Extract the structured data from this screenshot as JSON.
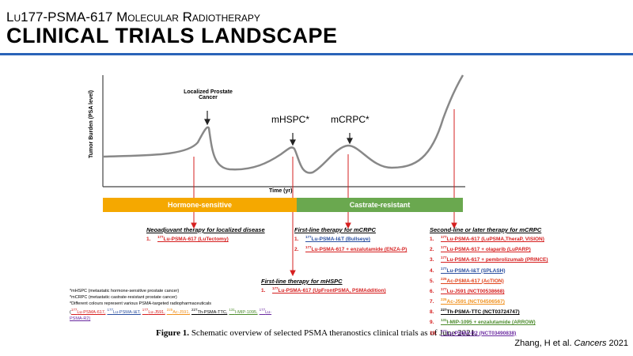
{
  "header": {
    "subtitle": "Lu177-PSMA-617 Molecular Radiotherapy",
    "title": "CLINICAL TRIALS LANDSCAPE"
  },
  "figure": {
    "y_axis_label": "Tumor Burden (PSA level)",
    "x_axis_label": "Time (yr)",
    "stages": [
      "Localized Prostate Cancer",
      "mHSPC*",
      "mCRPC*"
    ],
    "phases": [
      {
        "label": "Hormone-sensitive",
        "color": "#f5a800"
      },
      {
        "label": "Castrate-resistant",
        "color": "#6aa84f"
      }
    ],
    "sections": [
      {
        "heading": "Neoadjuvant therapy for localized disease",
        "items": [
          {
            "number": "1.",
            "sup": "177",
            "text": "Lu-PSMA-617 (LuTectomy)",
            "color": "#d62020"
          }
        ]
      },
      {
        "heading": "First-line therapy for mHSPC",
        "items": [
          {
            "number": "1.",
            "sup": "177",
            "text": "Lu-PSMA-617 (UpFrontPSMA, PSMAddition)",
            "color": "#d62020"
          }
        ]
      },
      {
        "heading": "First-line therapy for mCRPC",
        "items": [
          {
            "number": "1.",
            "sup": "177",
            "text": "Lu-PSMA-I&T (Bullseye)",
            "color": "#2a4fa0"
          },
          {
            "number": "2.",
            "sup": "177",
            "text": "Lu-PSMA-617 + enzalutamide (ENZA-P)",
            "color": "#d62020"
          }
        ]
      },
      {
        "heading": "Second-line or later therapy for mCRPC",
        "items": [
          {
            "number": "1.",
            "sup": "177",
            "text": "Lu-PSMA-617 (LuPSMA,TheraP, VISION)",
            "color": "#d62020"
          },
          {
            "number": "2.",
            "sup": "177",
            "text": "Lu-PSMA-617 + olaparib (LuPARP)",
            "color": "#d62020"
          },
          {
            "number": "3.",
            "sup": "177",
            "text": "Lu-PSMA-617 + pembrolizumab (PRINCE)",
            "color": "#d62020"
          },
          {
            "number": "4.",
            "sup": "177",
            "text": "Lu-PSMA-I&T (SPLASH)",
            "color": "#2a4fa0"
          },
          {
            "number": "5.",
            "sup": "225",
            "text": "Ac-PSMA-617 (AcTION)",
            "color": "#e0441c"
          },
          {
            "number": "6.",
            "sup": "177",
            "text": "Lu-J591 (NCT00538668)",
            "color": "#d62020"
          },
          {
            "number": "7.",
            "sup": "225",
            "text": "Ac-J591 (NCT04506567)",
            "color": "#f0901c"
          },
          {
            "number": "8.",
            "sup": "227",
            "text": "Th-PSMA-TTC (NCT03724747)",
            "color": "#000000"
          },
          {
            "number": "9.",
            "sup": "131",
            "text": "I-MIP-1095 + enzalutamide (ARROW)",
            "color": "#4a8a2a"
          },
          {
            "number": "10.",
            "sup": "177",
            "text": "Lu-PSMA-R2 (NCT03490838)",
            "color": "#6a2aa0"
          }
        ]
      }
    ],
    "notes": [
      "*mHSPC (metastatic hormone-sensitive prostate cancer)",
      "*mCRPC (metastatic castrate-resistant prostate cancer)",
      "*Different colours represent various PSMA-targeted radiopharmaceuticals"
    ],
    "legend_open": "(",
    "legend": [
      {
        "sup": "177",
        "text": "Lu-PSMA-617,",
        "color": "#d62020"
      },
      {
        "sup": "177",
        "text": "Lu-PSMA-I&T,",
        "color": "#2a4fa0"
      },
      {
        "sup": "177",
        "text": "Lu-J591,",
        "color": "#d62020"
      },
      {
        "sup": "225",
        "text": "Ac-J591,",
        "color": "#f0901c"
      },
      {
        "sup": "227",
        "text": "Th-PSMA-TTC,",
        "color": "#000000"
      },
      {
        "sup": "131",
        "text": "I-MIP-1095,",
        "color": "#4a8a2a"
      },
      {
        "sup": "177",
        "text": "Lu-PSMA-R2)",
        "color": "#6a2aa0"
      }
    ]
  },
  "caption": {
    "label": "Figure 1.",
    "text": "Schematic overview of selected PSMA theranostics clinical trials as of June 2021."
  },
  "credit": {
    "authors": "Zhang, H et al.",
    "journal": "Cancers",
    "year": "2021"
  }
}
